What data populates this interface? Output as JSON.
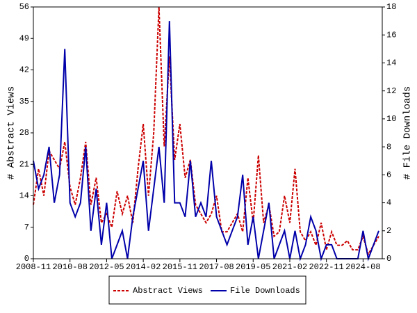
{
  "chart_data": {
    "type": "line",
    "ylabel": "# Abstract Views",
    "y2label": "# File Downloads",
    "x": [
      "2008-11",
      "2009-02",
      "2009-05",
      "2009-08",
      "2009-11",
      "2010-02",
      "2010-05",
      "2010-08",
      "2010-11",
      "2011-02",
      "2011-05",
      "2011-08",
      "2011-11",
      "2012-02",
      "2012-05",
      "2012-08",
      "2012-11",
      "2013-02",
      "2013-05",
      "2013-08",
      "2013-11",
      "2014-02",
      "2014-05",
      "2014-08",
      "2014-11",
      "2015-02",
      "2015-05",
      "2015-08",
      "2015-11",
      "2016-02",
      "2016-05",
      "2016-08",
      "2016-11",
      "2017-02",
      "2017-05",
      "2017-08",
      "2017-11",
      "2018-02",
      "2018-05",
      "2018-08",
      "2018-11",
      "2019-02",
      "2019-05",
      "2019-08",
      "2019-11",
      "2020-02",
      "2020-05",
      "2020-08",
      "2020-11",
      "2021-02",
      "2021-05",
      "2021-08",
      "2021-11",
      "2022-02",
      "2022-05",
      "2022-08",
      "2022-11",
      "2023-02",
      "2023-05",
      "2023-08",
      "2023-11",
      "2024-02",
      "2024-05",
      "2024-08",
      "2024-11",
      "2025-02",
      "2025-05"
    ],
    "series": [
      {
        "name": "Abstract Views",
        "color": "#cc0000",
        "dash": true,
        "axis": "y",
        "values": [
          12,
          20,
          14,
          24,
          22,
          20,
          26,
          16,
          12,
          18,
          26,
          12,
          18,
          8,
          10,
          7,
          15,
          10,
          14,
          8,
          20,
          30,
          14,
          28,
          56,
          25,
          45,
          22,
          30,
          18,
          22,
          12,
          10,
          8,
          10,
          14,
          6,
          6,
          8,
          10,
          6,
          18,
          8,
          23,
          8,
          12,
          5,
          6,
          14,
          8,
          20,
          6,
          4,
          6,
          3,
          8,
          2,
          6,
          3,
          3,
          4,
          2,
          2,
          5,
          1,
          3,
          5
        ]
      },
      {
        "name": "File Downloads",
        "color": "#0000aa",
        "dash": false,
        "axis": "y2",
        "values": [
          7,
          5,
          6,
          8,
          4,
          6,
          15,
          4,
          3,
          4,
          8,
          2,
          5,
          1,
          4,
          0,
          1,
          2,
          0,
          3,
          5,
          7,
          2,
          5,
          8,
          4,
          17,
          4,
          4,
          3,
          7,
          3,
          4,
          3,
          7,
          3,
          2,
          1,
          2,
          3,
          6,
          1,
          3,
          0,
          2,
          4,
          0,
          1,
          2,
          0,
          2,
          0,
          1,
          3,
          2,
          0,
          1,
          1,
          0,
          0,
          0,
          0,
          0,
          2,
          0,
          1,
          2
        ]
      }
    ],
    "xlim": [
      "2008-11",
      "2025-07"
    ],
    "xticks": [
      "2008-11",
      "2010-08",
      "2012-05",
      "2014-02",
      "2015-11",
      "2017-08",
      "2019-05",
      "2021-02",
      "2022-11",
      "2024-08"
    ],
    "ylim": [
      0,
      56
    ],
    "yticks": [
      0,
      7,
      14,
      21,
      28,
      35,
      42,
      49,
      56
    ],
    "y2lim": [
      0,
      18
    ],
    "y2ticks": [
      0,
      2,
      4,
      6,
      8,
      10,
      12,
      14,
      16,
      18
    ],
    "legend": "bottom"
  }
}
